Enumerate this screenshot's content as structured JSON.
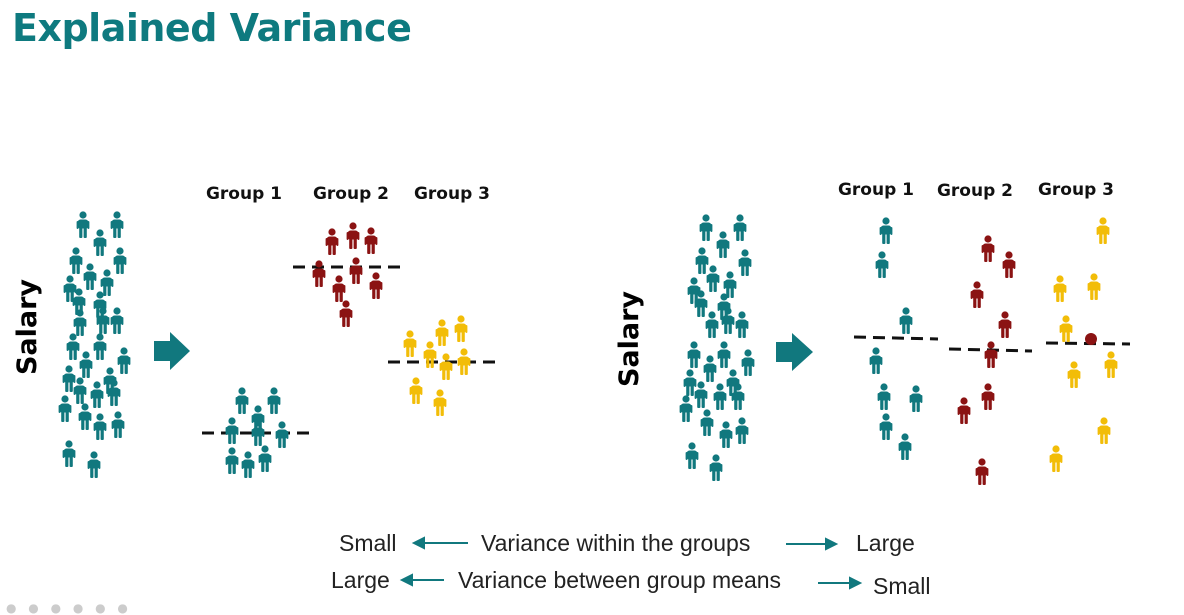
{
  "title": "Explained Variance",
  "colors": {
    "teal": "#11787e",
    "red": "#8b1313",
    "yellow": "#f2bd08",
    "title": "#0e7a7f"
  },
  "left_panel": {
    "axis_label": "Salary",
    "groups": [
      "Group 1",
      "Group 2",
      "Group 3"
    ]
  },
  "right_panel": {
    "axis_label": "Salary",
    "groups": [
      "Group 1",
      "Group 2",
      "Group 3"
    ]
  },
  "captions": {
    "within": {
      "left": "Small",
      "middle": "Variance within the groups",
      "right": "Large"
    },
    "between": {
      "left": "Large",
      "middle": "Variance between group means",
      "right": "Small"
    }
  }
}
